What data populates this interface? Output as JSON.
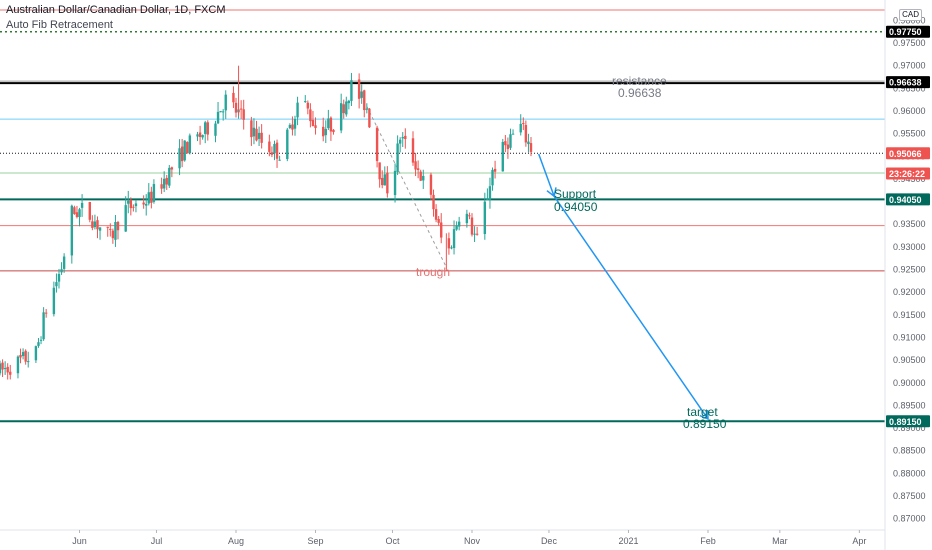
{
  "header": {
    "title": "Australian Dollar/Canadian Dollar, 1D, FXCM",
    "indicator": "Auto Fib Retracement",
    "currency": "CAD"
  },
  "price_axis": {
    "ticks": [
      "0.98000",
      "0.97500",
      "0.97000",
      "0.96500",
      "0.96000",
      "0.95500",
      "0.95000",
      "0.94500",
      "0.94000",
      "0.93500",
      "0.93000",
      "0.92500",
      "0.92000",
      "0.91500",
      "0.91000",
      "0.90500",
      "0.90000",
      "0.89500",
      "0.89000",
      "0.88500",
      "0.88000",
      "0.87500",
      "0.87000"
    ],
    "labels": [
      {
        "text": "0.97750",
        "price": 0.9775,
        "color": "#000000"
      },
      {
        "text": "0.96638",
        "price": 0.96638,
        "color": "#000000"
      },
      {
        "text": "0.95066",
        "price": 0.95066,
        "color": "#ef5350"
      },
      {
        "text": "23:26:22",
        "price": 0.9462,
        "color": "#ef5350"
      },
      {
        "text": "0.94050",
        "price": 0.9405,
        "color": "#00695c"
      },
      {
        "text": "0.89150",
        "price": 0.8915,
        "color": "#00695c"
      }
    ]
  },
  "time_axis": {
    "labels": [
      {
        "text": "Jun",
        "day": 31
      },
      {
        "text": "Jul",
        "day": 61
      },
      {
        "text": "Aug",
        "day": 92
      },
      {
        "text": "Sep",
        "day": 123
      },
      {
        "text": "Oct",
        "day": 153
      },
      {
        "text": "Nov",
        "day": 184
      },
      {
        "text": "Dec",
        "day": 214
      },
      {
        "text": "2021",
        "day": 245
      },
      {
        "text": "Feb",
        "day": 276
      },
      {
        "text": "Mar",
        "day": 304
      },
      {
        "text": "Apr",
        "day": 335
      }
    ]
  },
  "annotations": {
    "resistance_label": "resistance",
    "resistance_value": "0.96638",
    "support_label": "Support",
    "support_value": "0.94050",
    "target_label": "target",
    "target_value": "0.89150",
    "trough_label": "trough"
  },
  "colors": {
    "up": "#26a69a",
    "down": "#ef5350",
    "support": "#00695c",
    "resistance": "#000000",
    "arrow": "#2196f3",
    "trough": "#e57373"
  },
  "chart_data": {
    "type": "candlestick",
    "title": "Australian Dollar/Canadian Dollar, 1D, FXCM",
    "xlabel": "",
    "ylabel": "",
    "ylim": [
      0.8675,
      0.9845
    ],
    "x_range_days_from_May1_2020": [
      0,
      345
    ],
    "levels": [
      {
        "name": "resistance",
        "value": 0.96638
      },
      {
        "name": "support",
        "value": 0.9405
      },
      {
        "name": "target",
        "value": 0.8915
      },
      {
        "name": "0.97750",
        "value": 0.9775
      }
    ],
    "fib_levels": [
      0.9823,
      0.9582,
      0.9463,
      0.9347,
      0.9247
    ],
    "price_path_anchors": [
      {
        "day": 0,
        "price": 0.9025
      },
      {
        "day": 14,
        "price": 0.9065
      },
      {
        "day": 18,
        "price": 0.9162
      },
      {
        "day": 24,
        "price": 0.9255
      },
      {
        "day": 28,
        "price": 0.9375
      },
      {
        "day": 33,
        "price": 0.9382
      },
      {
        "day": 43,
        "price": 0.9318
      },
      {
        "day": 48,
        "price": 0.9382
      },
      {
        "day": 58,
        "price": 0.9405
      },
      {
        "day": 66,
        "price": 0.9465
      },
      {
        "day": 72,
        "price": 0.9518
      },
      {
        "day": 80,
        "price": 0.9555
      },
      {
        "day": 88,
        "price": 0.9625
      },
      {
        "day": 94,
        "price": 0.9588
      },
      {
        "day": 103,
        "price": 0.9525
      },
      {
        "day": 110,
        "price": 0.9505
      },
      {
        "day": 117,
        "price": 0.9635
      },
      {
        "day": 124,
        "price": 0.9555
      },
      {
        "day": 131,
        "price": 0.9575
      },
      {
        "day": 137,
        "price": 0.9655
      },
      {
        "day": 143,
        "price": 0.9608
      },
      {
        "day": 148,
        "price": 0.9468
      },
      {
        "day": 152,
        "price": 0.9418
      },
      {
        "day": 156,
        "price": 0.9545
      },
      {
        "day": 162,
        "price": 0.9485
      },
      {
        "day": 169,
        "price": 0.9388
      },
      {
        "day": 174,
        "price": 0.9272
      },
      {
        "day": 180,
        "price": 0.9395
      },
      {
        "day": 186,
        "price": 0.9312
      },
      {
        "day": 192,
        "price": 0.9468
      },
      {
        "day": 198,
        "price": 0.9535
      },
      {
        "day": 203,
        "price": 0.9565
      },
      {
        "day": 208,
        "price": 0.9506
      }
    ],
    "projection": [
      {
        "day": 210,
        "price": 0.9505
      },
      {
        "day": 216,
        "price": 0.9412
      },
      {
        "day": 276,
        "price": 0.892
      }
    ]
  }
}
